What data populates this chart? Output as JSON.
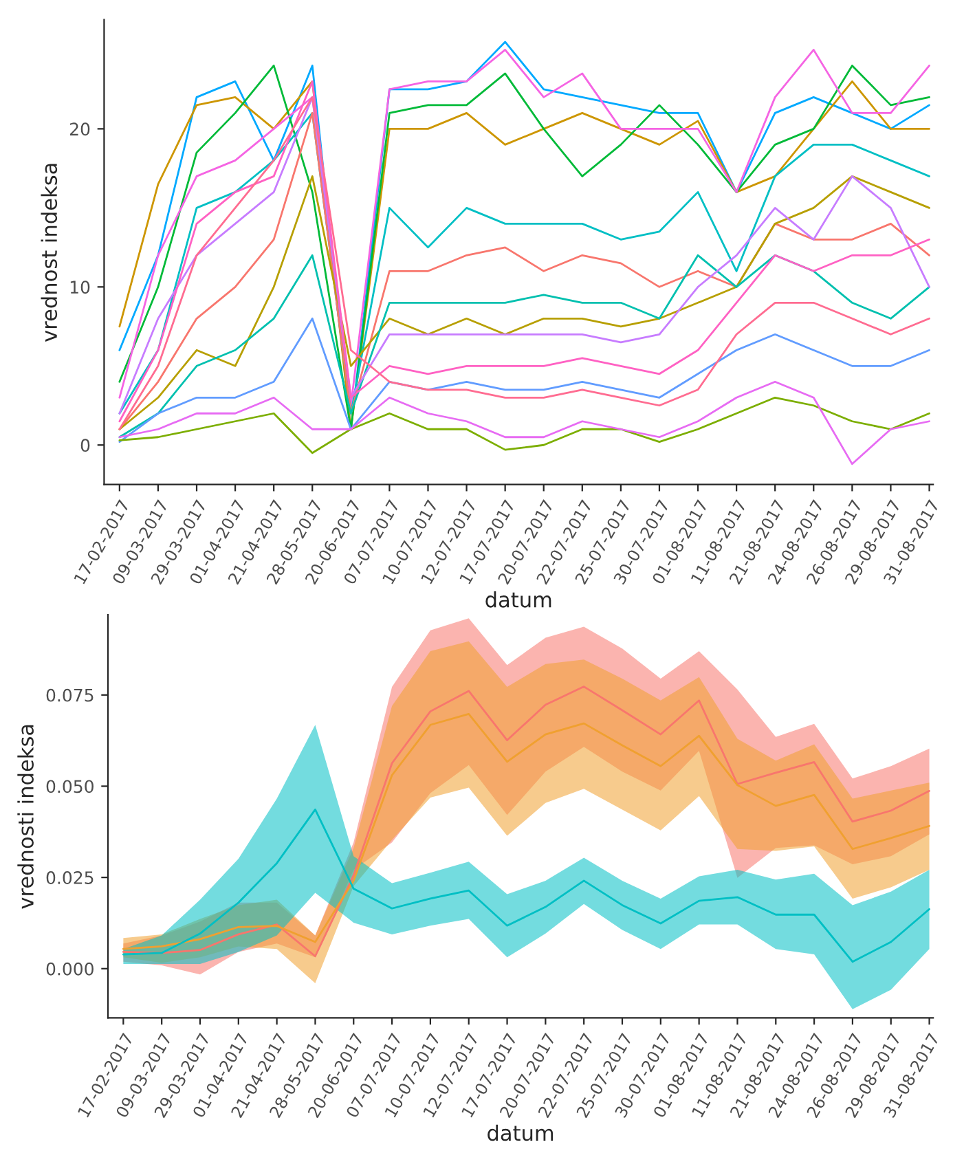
{
  "chart_data": [
    {
      "type": "line",
      "xlabel": "datum",
      "ylabel": "vrednost indeksa",
      "grid": false,
      "categories": [
        "17-02-2017",
        "09-03-2017",
        "29-03-2017",
        "01-04-2017",
        "21-04-2017",
        "28-05-2017",
        "20-06-2017",
        "07-07-2017",
        "10-07-2017",
        "12-07-2017",
        "17-07-2017",
        "20-07-2017",
        "22-07-2017",
        "25-07-2017",
        "30-07-2017",
        "01-08-2017",
        "11-08-2017",
        "21-08-2017",
        "24-08-2017",
        "26-08-2017",
        "29-08-2017",
        "31-08-2017"
      ],
      "ylim": [
        -2.5,
        26.9
      ],
      "yticks": [
        0,
        10,
        20
      ],
      "series": [
        {
          "color": "#00A9FF",
          "values": [
            6,
            12,
            22,
            23,
            18,
            24,
            1,
            22.5,
            22.5,
            23,
            25.5,
            22.5,
            22,
            21.5,
            21,
            21,
            16,
            21,
            22,
            21,
            20,
            21.5
          ]
        },
        {
          "color": "#CD9600",
          "values": [
            7.5,
            16.5,
            21.5,
            22,
            20,
            23,
            1,
            20,
            20,
            21,
            19,
            20,
            21,
            20,
            19,
            20.5,
            16,
            17,
            20,
            23,
            20,
            20
          ]
        },
        {
          "color": "#00BA38",
          "values": [
            4,
            10,
            18.5,
            21,
            24,
            16,
            1,
            21,
            21.5,
            21.5,
            23.5,
            20,
            17,
            19,
            21.5,
            19,
            16,
            19,
            20,
            24,
            21.5,
            22
          ]
        },
        {
          "color": "#F564E3",
          "values": [
            3,
            12,
            17,
            18,
            20,
            22,
            2.5,
            22.5,
            23,
            23,
            25,
            22,
            23.5,
            20,
            20,
            20,
            16,
            22,
            25,
            21,
            21,
            24
          ]
        },
        {
          "color": "#00BFC4",
          "values": [
            2,
            6,
            15,
            16,
            18,
            21,
            2,
            15,
            12.5,
            15,
            14,
            14,
            14,
            13,
            13.5,
            16,
            11,
            17,
            19,
            19,
            18,
            17
          ]
        },
        {
          "color": "#F8766D",
          "values": [
            1,
            4,
            8,
            10,
            13,
            21,
            2,
            11,
            11,
            12,
            12.5,
            11,
            12,
            11.5,
            10,
            11,
            10,
            14,
            13,
            13,
            14,
            12
          ]
        },
        {
          "color": "#B79F00",
          "values": [
            1,
            3,
            6,
            5,
            10,
            17,
            5,
            8,
            7,
            8,
            7,
            8,
            8,
            7.5,
            8,
            9,
            10,
            14,
            15,
            17,
            16,
            15
          ]
        },
        {
          "color": "#00C0AF",
          "values": [
            0.5,
            2,
            5,
            6,
            8,
            12,
            2,
            9,
            9,
            9,
            9,
            9.5,
            9,
            9,
            8,
            12,
            10,
            12,
            11,
            9,
            8,
            10
          ]
        },
        {
          "color": "#C77CFF",
          "values": [
            2,
            8,
            12,
            14,
            16,
            22,
            3,
            7,
            7,
            7,
            7,
            7,
            7,
            6.5,
            7,
            10,
            12,
            15,
            13,
            17,
            15,
            10
          ]
        },
        {
          "color": "#FF61C3",
          "values": [
            1.5,
            6,
            14,
            16,
            17,
            23,
            3,
            5,
            4.5,
            5,
            5,
            5,
            5.5,
            5,
            4.5,
            6,
            9,
            12,
            11,
            12,
            12,
            13
          ]
        },
        {
          "color": "#619CFF",
          "values": [
            0.2,
            2,
            3,
            3,
            4,
            8,
            1,
            4,
            3.5,
            4,
            3.5,
            3.5,
            4,
            3.5,
            3,
            4.5,
            6,
            7,
            6,
            5,
            5,
            6
          ]
        },
        {
          "color": "#7CAE00",
          "values": [
            0.3,
            0.5,
            1,
            1.5,
            2,
            -0.5,
            1,
            2,
            1,
            1,
            -0.3,
            0,
            1,
            1,
            0.2,
            1,
            2,
            3,
            2.5,
            1.5,
            1,
            2
          ]
        },
        {
          "color": "#E76BF3",
          "values": [
            0.5,
            1,
            2,
            2,
            3,
            1,
            1,
            3,
            2,
            1.5,
            0.5,
            0.5,
            1.5,
            1,
            0.5,
            1.5,
            3,
            4,
            3,
            -1.2,
            1,
            1.5
          ]
        },
        {
          "color": "#FF6C91",
          "values": [
            1,
            5,
            12,
            15,
            18,
            22,
            6,
            4,
            3.5,
            3.5,
            3,
            3,
            3.5,
            3,
            2.5,
            3.5,
            7,
            9,
            9,
            8,
            7,
            8
          ]
        }
      ]
    },
    {
      "type": "line",
      "xlabel": "datum",
      "ylabel": "vrednosti indeksa",
      "grid": false,
      "categories": [
        "17-02-2017",
        "09-03-2017",
        "29-03-2017",
        "01-04-2017",
        "21-04-2017",
        "28-05-2017",
        "20-06-2017",
        "07-07-2017",
        "10-07-2017",
        "12-07-2017",
        "17-07-2017",
        "20-07-2017",
        "22-07-2017",
        "25-07-2017",
        "30-07-2017",
        "01-08-2017",
        "11-08-2017",
        "21-08-2017",
        "24-08-2017",
        "26-08-2017",
        "29-08-2017",
        "31-08-2017"
      ],
      "ylim": [
        -0.0135,
        0.097
      ],
      "yticks": [
        {
          "value": 0,
          "label": "0.000"
        },
        {
          "value": 0.025,
          "label": "0.025"
        },
        {
          "value": 0.05,
          "label": "0.050"
        },
        {
          "value": 0.075,
          "label": "0.075"
        }
      ],
      "series": [
        {
          "color": "#F8766D",
          "values": [
            0.0046,
            0.0043,
            0.0051,
            0.0094,
            0.0121,
            0.0034,
            0.0256,
            0.0563,
            0.0705,
            0.0761,
            0.0626,
            0.0723,
            0.0773,
            0.0708,
            0.0642,
            0.0735,
            0.0506,
            0.0537,
            0.0566,
            0.0403,
            0.0433,
            0.0487
          ],
          "upper": [
            0.0069,
            0.0091,
            0.0129,
            0.0181,
            0.0181,
            0.0091,
            0.0346,
            0.0772,
            0.0927,
            0.096,
            0.0832,
            0.0907,
            0.0937,
            0.0877,
            0.0795,
            0.087,
            0.0765,
            0.0635,
            0.0671,
            0.0521,
            0.0555,
            0.0603
          ],
          "lower": [
            0.0019,
            0.0009,
            -0.0016,
            0.0046,
            0.0069,
            0.0031,
            0.0271,
            0.0346,
            0.0481,
            0.0558,
            0.0421,
            0.054,
            0.0608,
            0.054,
            0.0488,
            0.0597,
            0.0249,
            0.0331,
            0.0338,
            0.0286,
            0.0308,
            0.0368
          ]
        },
        {
          "color": "#F0A030",
          "values": [
            0.0054,
            0.0061,
            0.0081,
            0.0114,
            0.0117,
            0.0073,
            0.0241,
            0.053,
            0.0668,
            0.0698,
            0.0567,
            0.0642,
            0.0672,
            0.0612,
            0.0555,
            0.0638,
            0.0503,
            0.0446,
            0.0476,
            0.0328,
            0.0358,
            0.0391
          ],
          "upper": [
            0.0084,
            0.0094,
            0.0136,
            0.0174,
            0.0189,
            0.0091,
            0.0331,
            0.072,
            0.087,
            0.0897,
            0.0772,
            0.0835,
            0.0847,
            0.0795,
            0.0735,
            0.0799,
            0.063,
            0.057,
            0.0615,
            0.0466,
            0.0488,
            0.051
          ],
          "lower": [
            0.0031,
            0.0016,
            0.0031,
            0.0061,
            0.0054,
            -0.004,
            0.0226,
            0.0353,
            0.0469,
            0.0496,
            0.0364,
            0.0454,
            0.0493,
            0.0436,
            0.0379,
            0.0473,
            0.0328,
            0.0323,
            0.0335,
            0.0192,
            0.0223,
            0.0271
          ]
        },
        {
          "color": "#00BFC4",
          "values": [
            0.0039,
            0.0043,
            0.0096,
            0.0181,
            0.0289,
            0.0436,
            0.0219,
            0.0165,
            0.0192,
            0.0214,
            0.0118,
            0.0169,
            0.0241,
            0.0174,
            0.0124,
            0.0186,
            0.0196,
            0.0148,
            0.0148,
            0.0019,
            0.0073,
            0.0163
          ],
          "upper": [
            0.0054,
            0.0091,
            0.0189,
            0.0301,
            0.0466,
            0.0668,
            0.0308,
            0.0234,
            0.0263,
            0.0293,
            0.0204,
            0.0241,
            0.0304,
            0.0241,
            0.0192,
            0.0253,
            0.0271,
            0.0244,
            0.026,
            0.0174,
            0.0211,
            0.0271
          ],
          "lower": [
            0.0013,
            0.0013,
            0.0013,
            0.0046,
            0.0091,
            0.0208,
            0.0126,
            0.0094,
            0.0118,
            0.0136,
            0.0031,
            0.0096,
            0.0177,
            0.0106,
            0.0054,
            0.0121,
            0.0121,
            0.0054,
            0.0039,
            -0.0111,
            -0.0058,
            0.0054
          ]
        }
      ]
    }
  ]
}
